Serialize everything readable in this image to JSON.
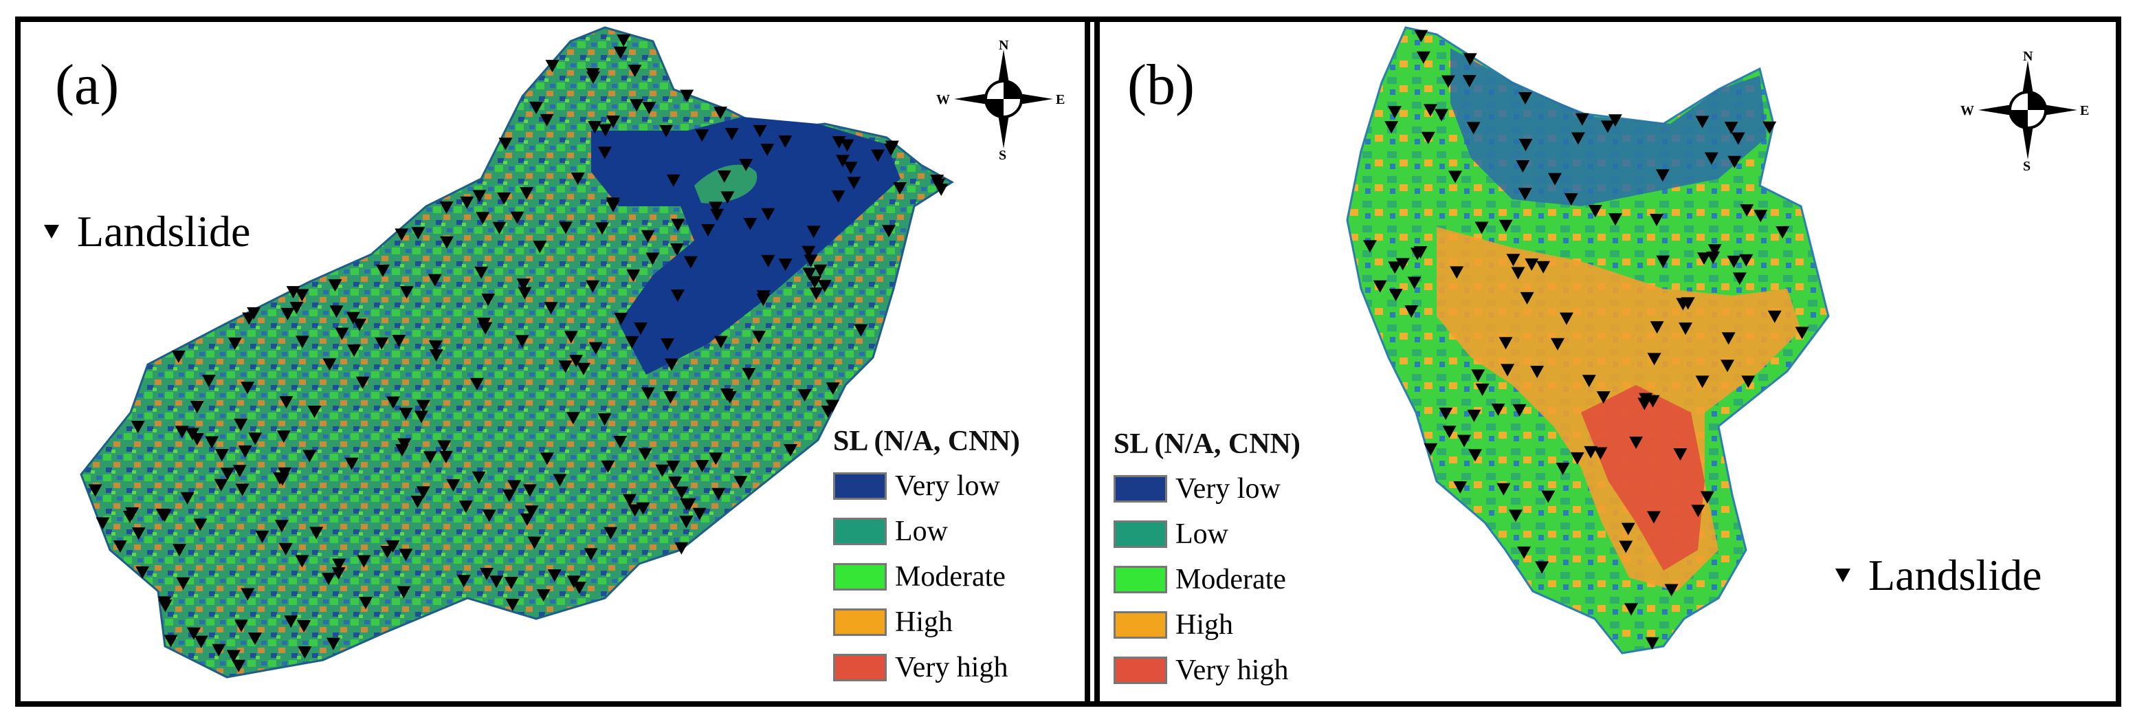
{
  "panels": [
    {
      "label": "(a)",
      "landslide_label": "Landslide",
      "legend": {
        "title": "SL (N/A, CNN)",
        "classes": [
          {
            "label": "Very low",
            "color": "#1a3a8a"
          },
          {
            "label": "Low",
            "color": "#1f9a78"
          },
          {
            "label": "Moderate",
            "color": "#36e636"
          },
          {
            "label": "High",
            "color": "#f2a51c"
          },
          {
            "label": "Very high",
            "color": "#e0503a"
          }
        ]
      },
      "compass": {
        "n": "N",
        "s": "S",
        "e": "E",
        "w": "W"
      }
    },
    {
      "label": "(b)",
      "landslide_label": "Landslide",
      "legend": {
        "title": "SL (N/A, CNN)",
        "classes": [
          {
            "label": "Very low",
            "color": "#1a3a8a"
          },
          {
            "label": "Low",
            "color": "#1f9a78"
          },
          {
            "label": "Moderate",
            "color": "#36e636"
          },
          {
            "label": "High",
            "color": "#f2a51c"
          },
          {
            "label": "Very high",
            "color": "#e0503a"
          }
        ]
      },
      "compass": {
        "n": "N",
        "s": "S",
        "e": "E",
        "w": "W"
      }
    }
  ]
}
